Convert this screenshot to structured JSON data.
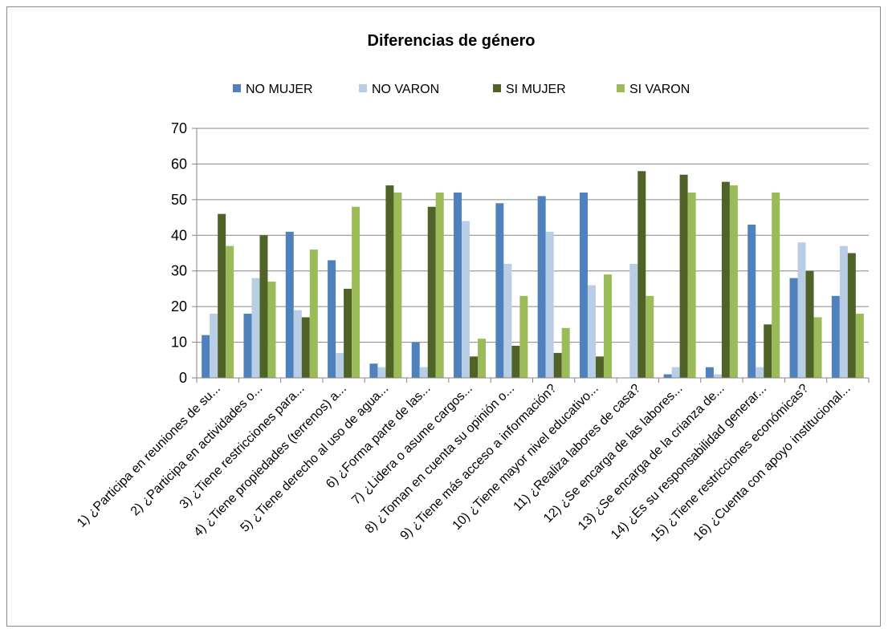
{
  "chart_data": {
    "type": "bar",
    "title": "Diferencias de género",
    "xlabel": "",
    "ylabel": "",
    "ylim": [
      0,
      70
    ],
    "yticks": [
      0,
      10,
      20,
      30,
      40,
      50,
      60,
      70
    ],
    "grid": true,
    "legend_position": "top",
    "categories": [
      "1) ¿Participa en reuniones de su...",
      "2) ¿Participa en actividades o...",
      "3) ¿Tiene restricciones para...",
      "4) ¿Tiene propiedades (terrenos) a...",
      "5) ¿Tiene derecho al uso de agua...",
      "6) ¿Forma parte de las...",
      "7) ¿Lidera o asume cargos...",
      "8) ¿Toman en cuenta su opinión o...",
      "9) ¿Tiene más acceso a información?",
      "10) ¿Tiene mayor nivel educativo...",
      "11) ¿Realiza labores de casa?",
      "12) ¿Se encarga de las labores...",
      "13) ¿Se encarga de la crianza de...",
      "14) ¿Es su responsabilidad generar...",
      "15) ¿Tiene restricciones económicas?",
      "16) ¿Cuenta con apoyo institucional..."
    ],
    "series": [
      {
        "name": "NO MUJER",
        "color": "#4f81bd",
        "values": [
          12,
          18,
          41,
          33,
          4,
          10,
          52,
          49,
          51,
          52,
          0,
          1,
          3,
          43,
          28,
          23
        ]
      },
      {
        "name": "NO VARON",
        "color": "#b9cde5",
        "values": [
          18,
          28,
          19,
          7,
          3,
          3,
          44,
          32,
          41,
          26,
          32,
          3,
          1,
          3,
          38,
          37
        ]
      },
      {
        "name": "SI MUJER",
        "color": "#4f6228",
        "values": [
          46,
          40,
          17,
          25,
          54,
          48,
          6,
          9,
          7,
          6,
          58,
          57,
          55,
          15,
          30,
          35
        ]
      },
      {
        "name": "SI VARON",
        "color": "#9bbb59",
        "values": [
          37,
          27,
          36,
          48,
          52,
          52,
          11,
          23,
          14,
          29,
          23,
          52,
          54,
          52,
          17,
          18
        ]
      }
    ]
  },
  "colors": {
    "gridline": "#868686",
    "axis": "#868686",
    "border": "#8c8c8c"
  }
}
